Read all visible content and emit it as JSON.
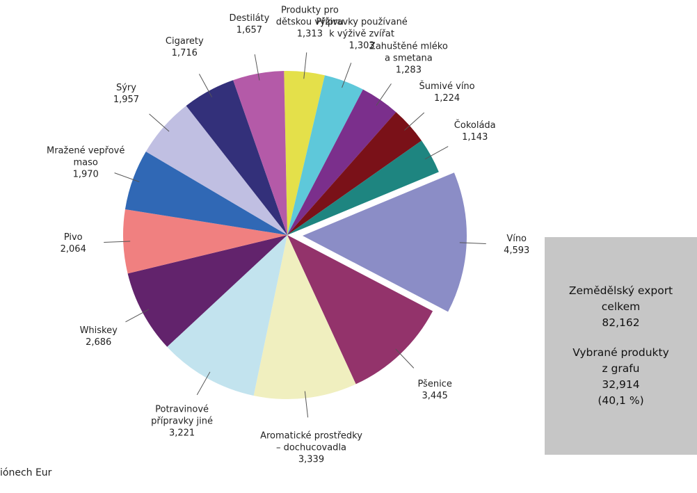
{
  "chart_data": {
    "type": "pie",
    "categories": [
      "Produkty pro\ndětskou výživu",
      "Přípravky používané\nk výživě zvířat",
      "Zahuštěné mléko\na smetana",
      "Šumivé víno",
      "Čokoláda",
      "Víno",
      "Pšenice",
      "Aromatické prostředky\n– dochucovadla",
      "Potravinové\npřípravky jiné",
      "Whiskey",
      "Pivo",
      "Mražené vepřové\nmaso",
      "Sýry",
      "Cigarety",
      "Destiláty"
    ],
    "values": [
      1.313,
      1.303,
      1.283,
      1.224,
      1.143,
      4.593,
      3.445,
      3.339,
      3.221,
      2.686,
      2.064,
      1.97,
      1.957,
      1.716,
      1.657
    ],
    "value_labels": [
      "1,313",
      "1,303",
      "1,283",
      "1,224",
      "1,143",
      "4,593",
      "3,445",
      "3,339",
      "3,221",
      "2,686",
      "2,064",
      "1,970",
      "1,957",
      "1,716",
      "1,657"
    ],
    "colors": [
      "#e4e04a",
      "#5ec8da",
      "#7b2f8c",
      "#7a1118",
      "#1e8580",
      "#8b8dc6",
      "#93336b",
      "#f0efbf",
      "#c2e3ee",
      "#62236c",
      "#f08080",
      "#3068b5",
      "#c0bfe2",
      "#33307a",
      "#b45aa8"
    ],
    "unit_note": "iónech Eur",
    "annotations": [
      "Zemědělský export\ncelkem\n82,162",
      "Vybrané produkty\nz grafu\n32,914\n(40,1 %)"
    ]
  }
}
